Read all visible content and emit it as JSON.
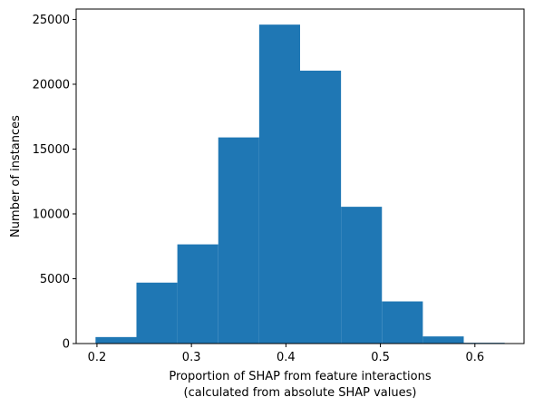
{
  "chart_data": {
    "type": "bar",
    "subtype": "histogram",
    "title": "",
    "xlabel_line1": "Proportion of SHAP from feature interactions",
    "xlabel_line2": "(calculated from absolute SHAP values)",
    "ylabel": "Number of instances",
    "bar_color": "#1f77b4",
    "xlim": [
      0.178,
      0.652
    ],
    "ylim": [
      0,
      25800
    ],
    "x_ticks": [
      0.2,
      0.3,
      0.4,
      0.5,
      0.6
    ],
    "x_tick_labels": [
      "0.2",
      "0.3",
      "0.4",
      "0.5",
      "0.6"
    ],
    "y_ticks": [
      0,
      5000,
      10000,
      15000,
      20000,
      25000
    ],
    "y_tick_labels": [
      "0",
      "5000",
      "10000",
      "15000",
      "20000",
      "25000"
    ],
    "bin_edges": [
      0.1985,
      0.2418,
      0.2851,
      0.3284,
      0.3717,
      0.415,
      0.4583,
      0.5016,
      0.5449,
      0.5882,
      0.6315
    ],
    "values": [
      500,
      4700,
      7650,
      15900,
      24600,
      21050,
      10550,
      3250,
      550,
      60
    ],
    "grid": false,
    "legend": "none"
  }
}
